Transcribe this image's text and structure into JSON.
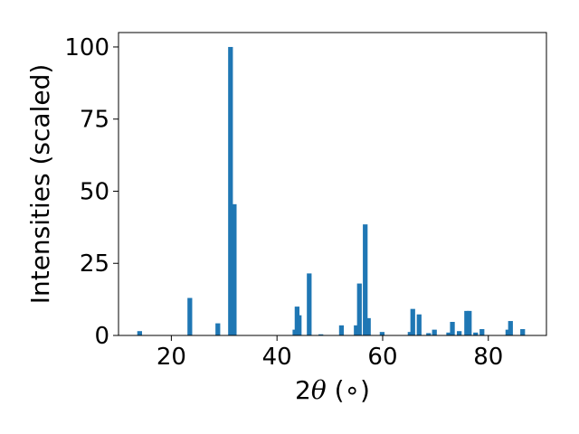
{
  "chart_data": {
    "type": "bar",
    "xlabel": {
      "prefix": "2",
      "symbol": "θ",
      "suffix": " (∘)"
    },
    "ylabel": "Intensities (scaled)",
    "xlim": [
      10,
      91
    ],
    "ylim": [
      0,
      105
    ],
    "x_ticks": [
      20,
      40,
      60,
      80
    ],
    "y_ticks": [
      0,
      25,
      50,
      75,
      100
    ],
    "bar_width": 0.9,
    "bar_color": "#1f77b4",
    "grid": false,
    "x": [
      14.0,
      23.5,
      28.8,
      31.2,
      31.9,
      43.4,
      43.8,
      44.2,
      46.1,
      48.3,
      52.2,
      55.0,
      55.6,
      56.7,
      57.3,
      59.9,
      65.2,
      65.7,
      66.9,
      68.7,
      69.8,
      72.5,
      73.2,
      74.5,
      75.9,
      76.4,
      77.6,
      78.8,
      83.7,
      84.2,
      86.5
    ],
    "y": [
      1.5,
      13.0,
      4.2,
      100.0,
      45.5,
      2.0,
      10.0,
      7.0,
      21.5,
      0.4,
      3.5,
      3.5,
      18.0,
      38.5,
      6.0,
      1.2,
      1.2,
      9.2,
      7.3,
      0.8,
      2.0,
      1.0,
      4.7,
      1.5,
      8.5,
      8.5,
      1.0,
      2.2,
      2.0,
      5.0,
      2.2
    ]
  }
}
